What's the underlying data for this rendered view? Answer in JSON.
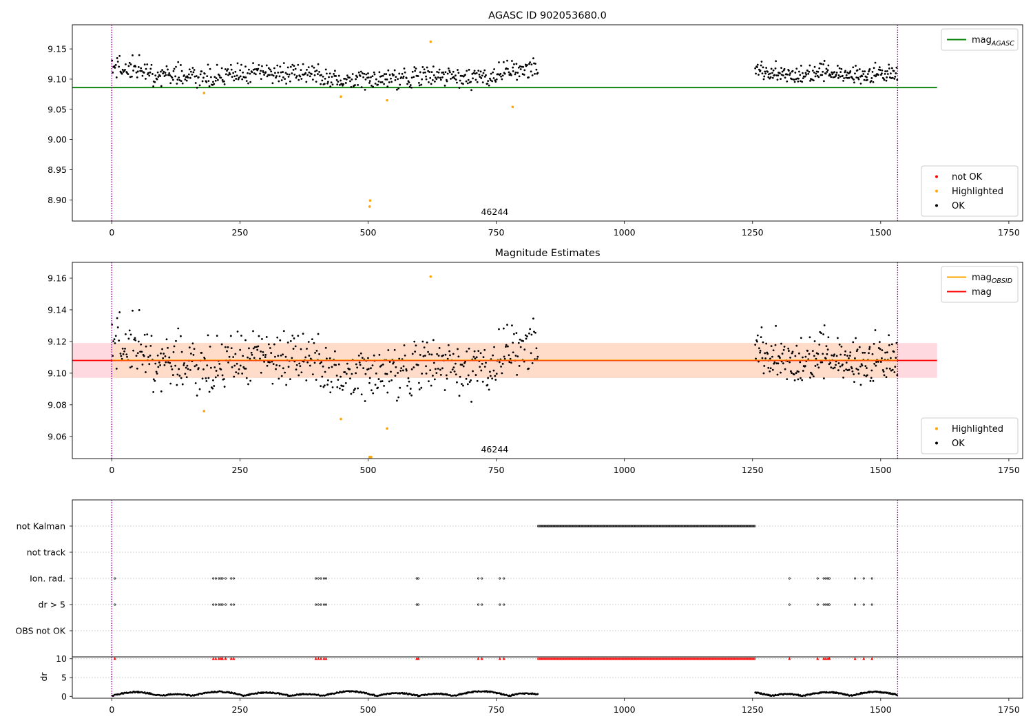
{
  "colors": {
    "ok": "#000000",
    "highlighted": "#ffa500",
    "not_ok": "#ff0000",
    "agasc_line": "#008000",
    "obsid_line": "#ffa500",
    "mean_line": "#ff0000",
    "band_pink": "#ffc0cb",
    "band_orange": "#ffdcc8",
    "vline": "#800080",
    "grid": "#b0b0b0"
  },
  "chart_data": [
    {
      "type": "scatter",
      "title": "AGASC ID 902053680.0",
      "xlim": [
        -77,
        1777
      ],
      "ylim": [
        8.865,
        9.19
      ],
      "xticks": [
        0,
        250,
        500,
        750,
        1000,
        1250,
        1500,
        1750
      ],
      "yticks": [
        8.9,
        8.95,
        9.0,
        9.05,
        9.1,
        9.15
      ],
      "ytick_labels": [
        "8.90",
        "8.95",
        "9.00",
        "9.05",
        "9.10",
        "9.15"
      ],
      "obs_boundaries": [
        0,
        1533
      ],
      "obsid_label": {
        "text": "46244",
        "x": 766
      },
      "legends": [
        {
          "position": "top-right",
          "items": [
            {
              "label": "mag",
              "subscript": "AGASC",
              "kind": "line",
              "color": "#008000"
            }
          ]
        },
        {
          "position": "lower-right",
          "items": [
            {
              "label": "not OK",
              "kind": "dot",
              "color": "#ff0000"
            },
            {
              "label": "Highlighted",
              "kind": "dot",
              "color": "#ffa500"
            },
            {
              "label": "OK",
              "kind": "dot",
              "color": "#000000"
            }
          ]
        }
      ],
      "lines": [
        {
          "name": "mag_AGASC",
          "y": 9.086,
          "x_range": [
            -77,
            1610
          ],
          "color": "#008000"
        }
      ],
      "ok_series": {
        "segments": [
          {
            "x_start": 0,
            "x_end": 832,
            "n": 560,
            "base": 9.11,
            "spread": 0.012,
            "knots": [
              [
                0,
                9.12
              ],
              [
                100,
                9.108
              ],
              [
                200,
                9.102
              ],
              [
                300,
                9.112
              ],
              [
                400,
                9.104
              ],
              [
                500,
                9.098
              ],
              [
                600,
                9.106
              ],
              [
                700,
                9.102
              ],
              [
                760,
                9.11
              ],
              [
                832,
                9.118
              ]
            ]
          },
          {
            "x_start": 1255,
            "x_end": 1533,
            "n": 220,
            "base": 9.108,
            "spread": 0.01,
            "knots": [
              [
                1255,
                9.12
              ],
              [
                1330,
                9.104
              ],
              [
                1380,
                9.114
              ],
              [
                1450,
                9.104
              ],
              [
                1533,
                9.11
              ]
            ]
          }
        ]
      },
      "highlighted": [
        [
          180,
          9.077
        ],
        [
          447,
          9.071
        ],
        [
          503,
          8.889
        ],
        [
          504,
          8.899
        ],
        [
          537,
          9.065
        ],
        [
          622,
          9.162
        ],
        [
          782,
          9.054
        ]
      ]
    },
    {
      "type": "scatter",
      "title": "Magnitude Estimates",
      "xlim": [
        -77,
        1777
      ],
      "ylim": [
        9.046,
        9.17
      ],
      "xticks": [
        0,
        250,
        500,
        750,
        1000,
        1250,
        1500,
        1750
      ],
      "yticks": [
        9.06,
        9.08,
        9.1,
        9.12,
        9.14,
        9.16
      ],
      "ytick_labels": [
        "9.06",
        "9.08",
        "9.10",
        "9.12",
        "9.14",
        "9.16"
      ],
      "obs_boundaries": [
        0,
        1533
      ],
      "obsid_label": {
        "text": "46244",
        "x": 766
      },
      "legends": [
        {
          "position": "top-right",
          "items": [
            {
              "label": "mag",
              "subscript": "OBSID",
              "kind": "line",
              "color": "#ffa500"
            },
            {
              "label": "mag",
              "kind": "line",
              "color": "#ff0000"
            }
          ]
        },
        {
          "position": "lower-right",
          "items": [
            {
              "label": "Highlighted",
              "kind": "dot",
              "color": "#ffa500"
            },
            {
              "label": "OK",
              "kind": "dot",
              "color": "#000000"
            }
          ]
        }
      ],
      "mean_mag": 9.108,
      "band": [
        9.097,
        9.119
      ],
      "band_x": [
        -77,
        1610
      ],
      "obsid_band_x": [
        0,
        1533
      ],
      "ok_series_ref": 0,
      "highlighted": [
        [
          180,
          9.076
        ],
        [
          447,
          9.071
        ],
        [
          503,
          9.047
        ],
        [
          506,
          9.047
        ],
        [
          537,
          9.065
        ],
        [
          622,
          9.161
        ]
      ]
    },
    {
      "type": "scatter",
      "title": "",
      "xlim": [
        -77,
        1777
      ],
      "xticks": [
        0,
        250,
        500,
        750,
        1000,
        1250,
        1500,
        1750
      ],
      "categories": [
        "not Kalman",
        "not track",
        "Ion. rad.",
        "dr > 5",
        "OBS not OK"
      ],
      "ylabel": "dr",
      "dr_ylim": [
        -0.5,
        10.5
      ],
      "dr_yticks": [
        0,
        5,
        10
      ],
      "obs_boundaries": [
        0,
        1533
      ],
      "not_kalman_range": [
        832,
        1255
      ],
      "flag_times": [
        6,
        198,
        203,
        209,
        213,
        216,
        222,
        233,
        238,
        398,
        403,
        408,
        414,
        418,
        595,
        598,
        715,
        722,
        757,
        765,
        1322,
        1377,
        1389,
        1393,
        1397,
        1400,
        1450,
        1467,
        1483
      ]
    }
  ]
}
